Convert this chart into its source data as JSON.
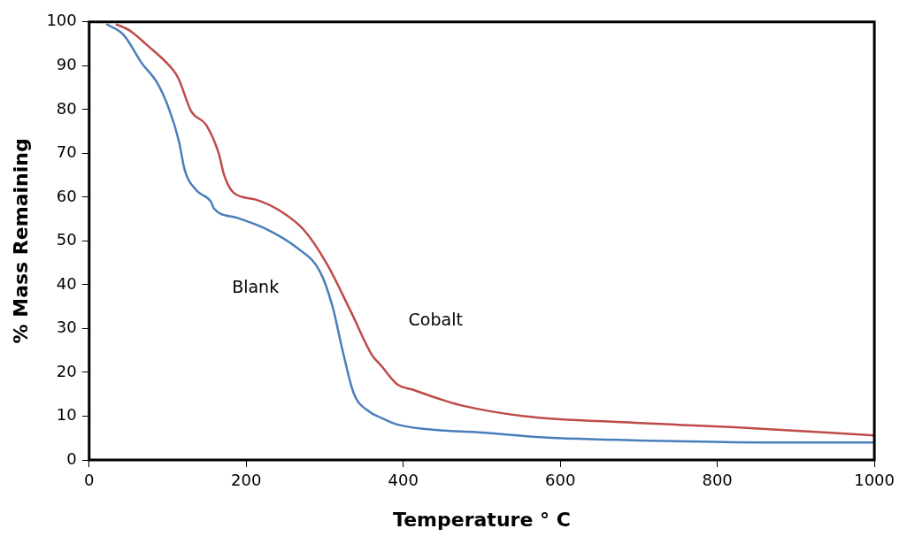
{
  "chart_data": {
    "type": "line",
    "xlabel": "Temperature ° C",
    "ylabel": "% Mass Remaining",
    "xlim": [
      0,
      1000
    ],
    "xticks": [
      0,
      200,
      400,
      600,
      800,
      {
        "value": 1000,
        "label": "1000"
      }
    ],
    "ylim": [
      0,
      100
    ],
    "yticks": [
      0,
      10,
      20,
      30,
      40,
      50,
      60,
      70,
      80,
      90,
      100
    ],
    "grid": false,
    "legend": false,
    "marker": "none",
    "line_style": "solid",
    "series": [
      {
        "name": "Blank",
        "color": "#4a7ebb",
        "x": [
          22,
          44,
          67,
          87,
          102,
          114,
          122,
          137,
          155,
          159,
          188,
          227,
          265,
          294,
          310,
          322,
          337,
          357,
          372,
          392,
          453,
          488,
          574,
          715,
          857,
          1000
        ],
        "values": [
          99.5,
          97,
          90.6,
          86,
          80,
          73,
          66,
          61.5,
          59,
          57.4,
          55.3,
          52.6,
          48.4,
          43,
          35,
          25.6,
          15.2,
          11,
          9.6,
          8.1,
          6.7,
          6.4,
          5.2,
          4.4,
          4.0,
          4.0
        ]
      },
      {
        "name": "Cobalt",
        "color": "#be4b48",
        "x": [
          34,
          52,
          72,
          107,
          114,
          130,
          149,
          165,
          172,
          184,
          211,
          242,
          273,
          302,
          333,
          360,
          372,
          392,
          413,
          450,
          473,
          554,
          695,
          817,
          1000
        ],
        "values": [
          99.5,
          98,
          95,
          89,
          87,
          79.6,
          76.5,
          70,
          65,
          61,
          59.5,
          57,
          52.6,
          45,
          34,
          24,
          21.5,
          17.3,
          16,
          13.7,
          12.5,
          10,
          8.5,
          7.5,
          5.6
        ]
      }
    ]
  }
}
